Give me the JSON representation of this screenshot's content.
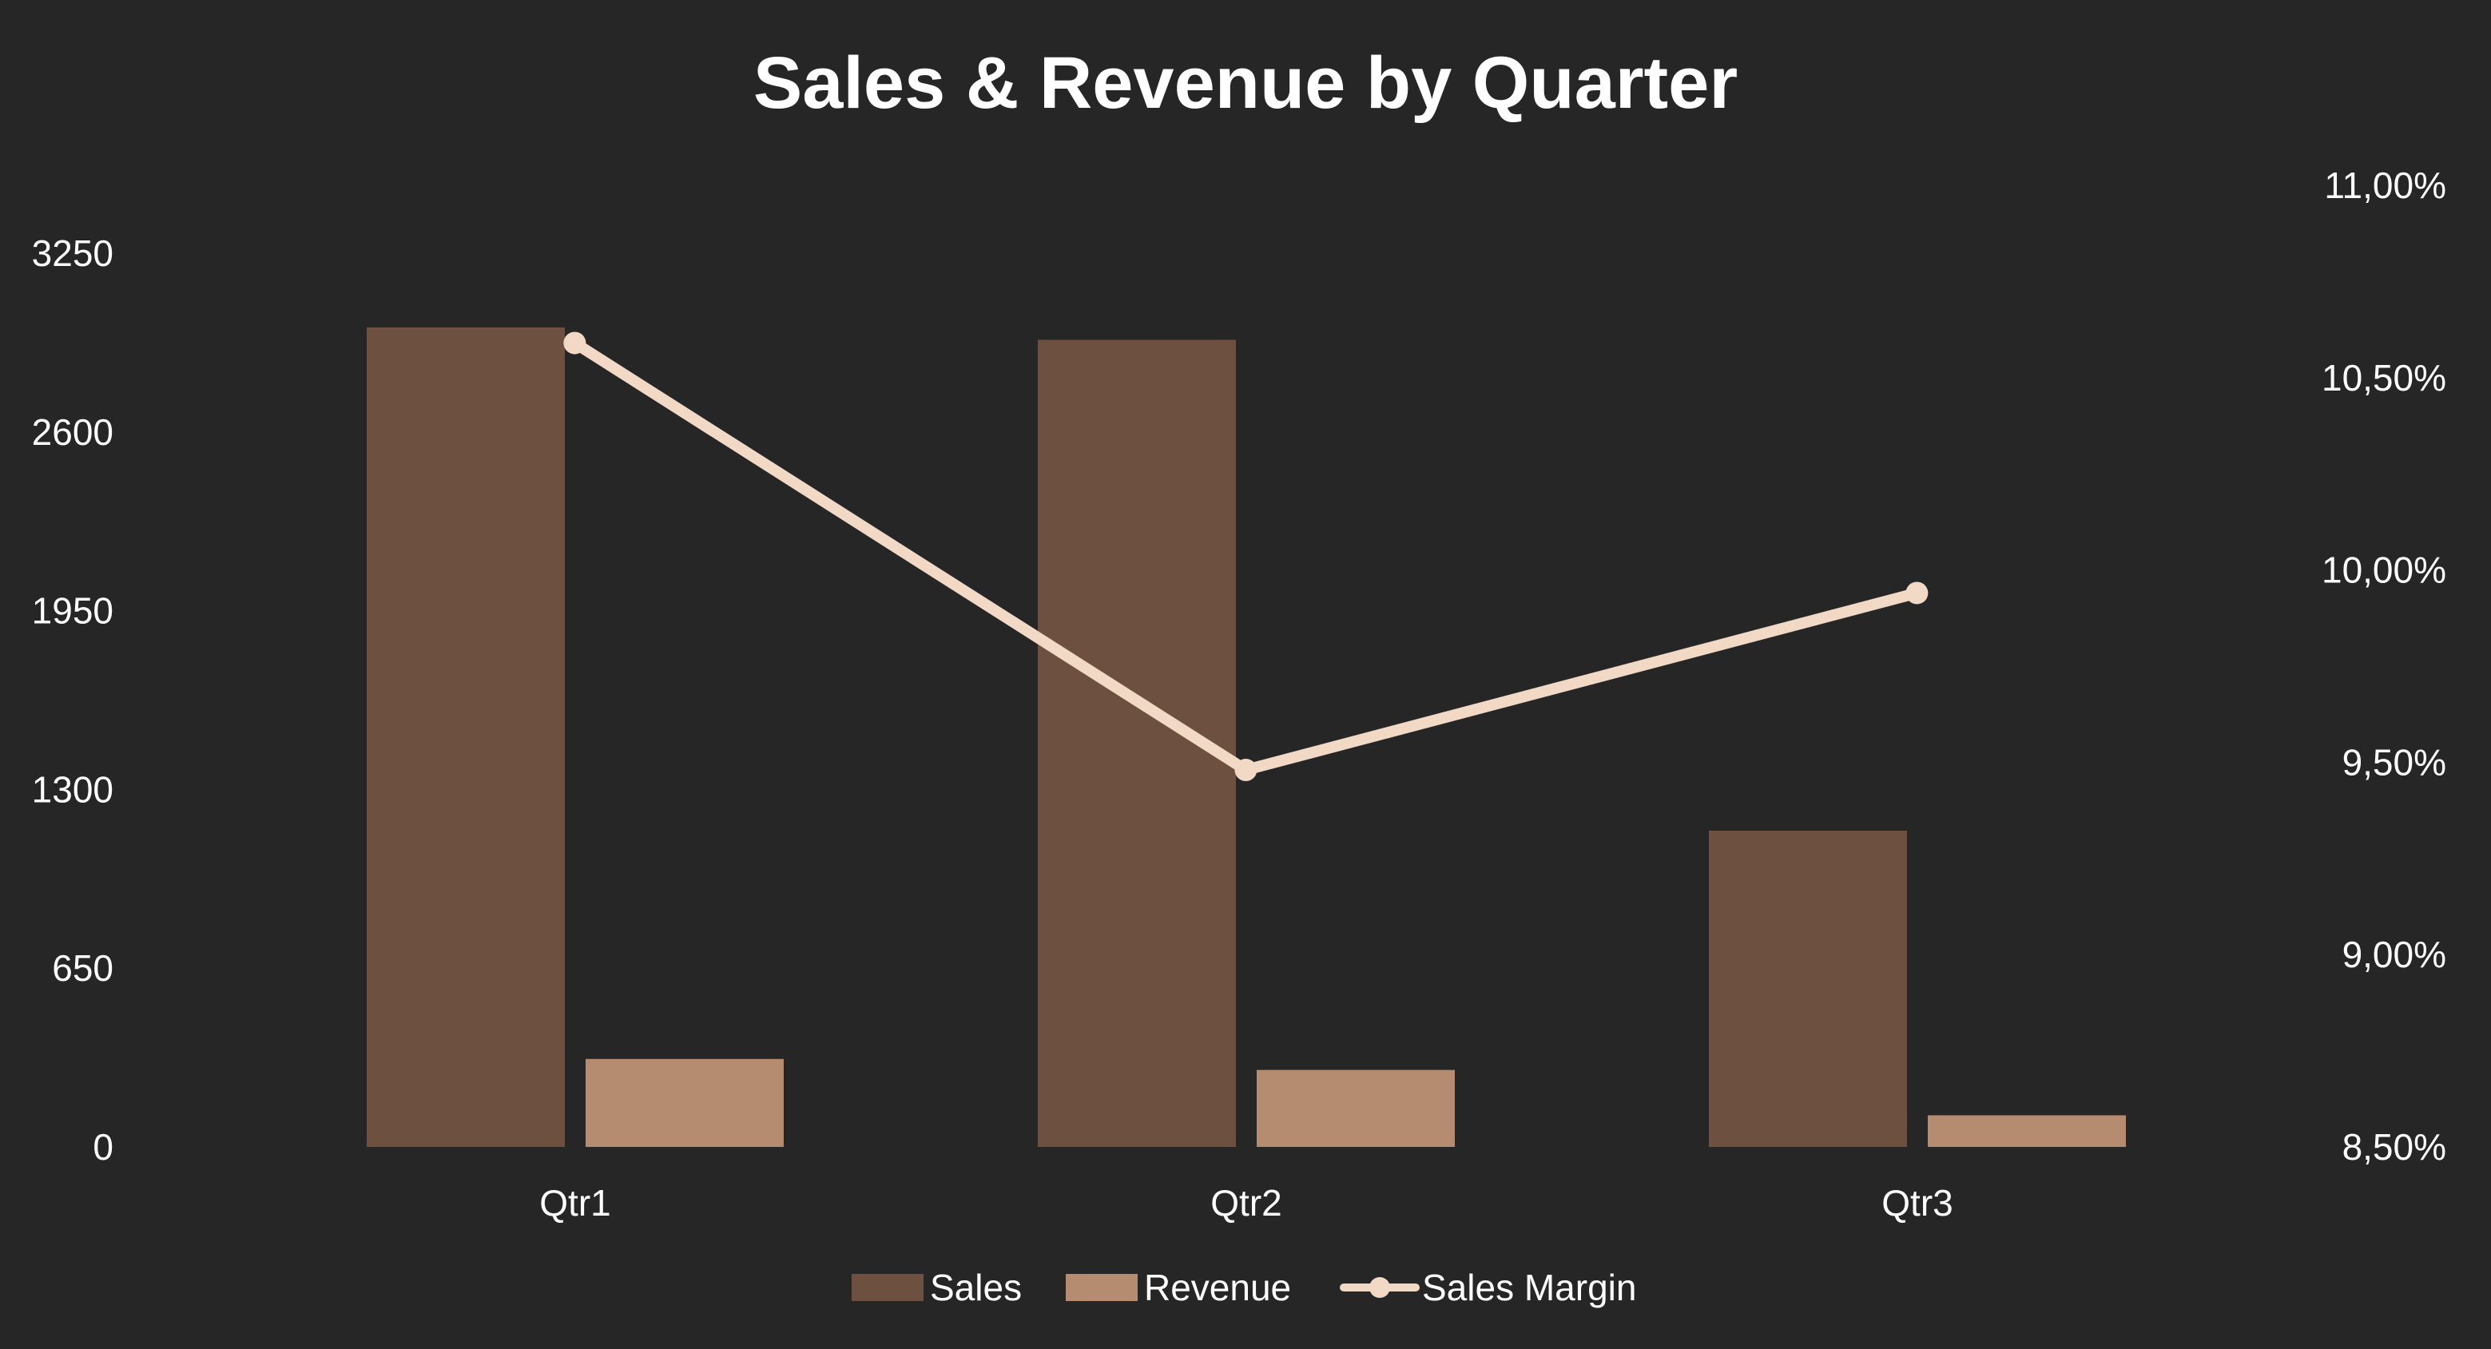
{
  "chart_data": {
    "type": "bar",
    "title": "Sales & Revenue by Quarter",
    "categories": [
      "Qtr1",
      "Qtr2",
      "Qtr3"
    ],
    "series": [
      {
        "name": "Sales",
        "type": "bar",
        "axis": "left",
        "color": "#6d5040",
        "values": [
          2980,
          2935,
          1150
        ]
      },
      {
        "name": "Revenue",
        "type": "bar",
        "axis": "left",
        "color": "#b58c70",
        "values": [
          320,
          280,
          115
        ]
      },
      {
        "name": "Sales Margin",
        "type": "line",
        "axis": "right",
        "color": "#f1d9c6",
        "values": [
          0.1059,
          0.0948,
          0.0994
        ]
      }
    ],
    "y_left": {
      "min": 0,
      "max": 3250,
      "ticks": [
        0,
        650,
        1300,
        1950,
        2600,
        3250
      ]
    },
    "y_right": {
      "min": 0.085,
      "max": 0.11,
      "ticks": [
        0.085,
        0.09,
        0.095,
        0.1,
        0.105,
        0.11
      ],
      "tick_labels": [
        "8,50%",
        "9,00%",
        "9,50%",
        "10,00%",
        "10,50%",
        "11,00%"
      ]
    },
    "grid": false,
    "legend": {
      "position": "bottom",
      "entries": [
        "Sales",
        "Revenue",
        "Sales Margin"
      ]
    }
  }
}
